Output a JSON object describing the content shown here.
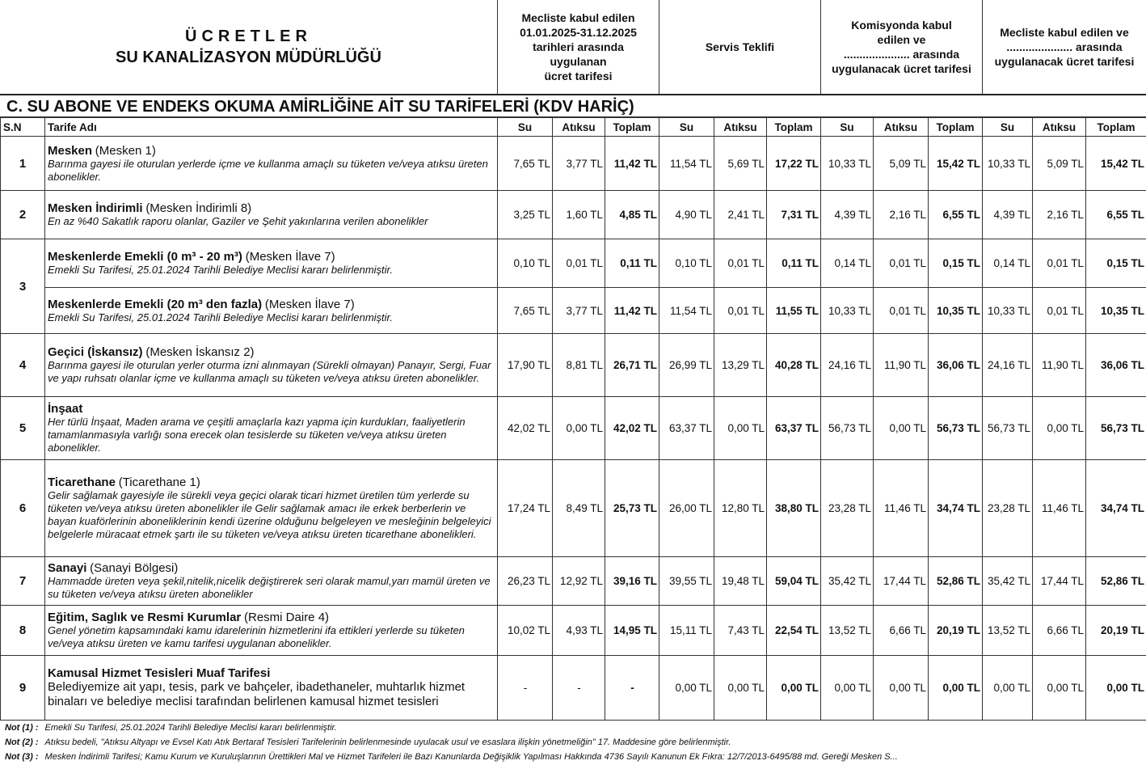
{
  "header": {
    "title": [
      "ÜCRETLER",
      "SU KANALİZASYON MÜDÜRLÜĞÜ"
    ],
    "groups": [
      [
        "Mecliste kabul edilen",
        "01.01.2025-31.12.2025",
        "tarihleri arasında",
        "uygulanan",
        "ücret tarifesi"
      ],
      [
        "Servis Teklifi"
      ],
      [
        "Komisyonda kabul",
        "edilen ve",
        "..................... arasında",
        "uygulanacak ücret tarifesi"
      ],
      [
        "Mecliste kabul edilen ve",
        "..................... arasında",
        "uygulanacak ücret tarifesi"
      ]
    ]
  },
  "section_title": "C. SU ABONE VE ENDEKS OKUMA AMİRLİĞİNE AİT SU TARİFELERİ (KDV HARİÇ)",
  "table": {
    "columns": [
      "S.N",
      "Tarife Adı",
      "Su",
      "Atıksu",
      "Toplam",
      "Su",
      "Atıksu",
      "Toplam",
      "Su",
      "Atıksu",
      "Toplam",
      "Su",
      "Atıksu",
      "Toplam"
    ],
    "rows": [
      {
        "sn": "1",
        "entries": [
          {
            "name": "Mesken",
            "note": "(Mesken 1)",
            "desc": "Barınma gayesi ile oturulan yerlerde içme ve kullanma amaçlı su tüketen ve/veya atıksu üreten abonelikler.",
            "values": [
              "7,65 TL",
              "3,77 TL",
              "11,42 TL",
              "11,54 TL",
              "5,69 TL",
              "17,22 TL",
              "10,33 TL",
              "5,09 TL",
              "15,42 TL",
              "10,33 TL",
              "5,09 TL",
              "15,42 TL"
            ]
          }
        ]
      },
      {
        "sn": "2",
        "entries": [
          {
            "name": "Mesken İndirimli",
            "note": "(Mesken İndirimli 8)",
            "desc": "En az %40 Sakatlık raporu olanlar, Gaziler ve Şehit yakınlarına verilen abonelikler",
            "values": [
              "3,25 TL",
              "1,60 TL",
              "4,85 TL",
              "4,90 TL",
              "2,41 TL",
              "7,31 TL",
              "4,39 TL",
              "2,16 TL",
              "6,55 TL",
              "4,39 TL",
              "2,16 TL",
              "6,55 TL"
            ]
          }
        ]
      },
      {
        "sn": "3",
        "entries": [
          {
            "name": "Meskenlerde Emekli (0 m³ - 20 m³)",
            "note": "(Mesken İlave 7)",
            "desc": "Emekli Su Tarifesi, 25.01.2024 Tarihli Belediye Meclisi kararı belirlenmiştir.",
            "values": [
              "0,10 TL",
              "0,01 TL",
              "0,11 TL",
              "0,10 TL",
              "0,01 TL",
              "0,11 TL",
              "0,14 TL",
              "0,01 TL",
              "0,15 TL",
              "0,14 TL",
              "0,01 TL",
              "0,15 TL"
            ]
          },
          {
            "name": "Meskenlerde Emekli (20 m³ den fazla)",
            "note": "(Mesken İlave 7)",
            "desc": "Emekli Su Tarifesi, 25.01.2024 Tarihli Belediye Meclisi kararı belirlenmiştir.",
            "values": [
              "7,65 TL",
              "3,77 TL",
              "11,42 TL",
              "11,54 TL",
              "0,01 TL",
              "11,55 TL",
              "10,33 TL",
              "0,01 TL",
              "10,35 TL",
              "10,33 TL",
              "0,01 TL",
              "10,35 TL"
            ]
          }
        ]
      },
      {
        "sn": "4",
        "entries": [
          {
            "name": "Geçici (İskansız)",
            "note": "(Mesken İskansız 2)",
            "desc": "Barınma gayesi ile oturulan yerler oturma izni alınmayan (Sürekli olmayan) Panayır, Sergi, Fuar ve yapı ruhsatı olanlar içme ve kullanma amaçlı su tüketen ve/veya atıksu üreten abonelikler.",
            "values": [
              "17,90 TL",
              "8,81 TL",
              "26,71 TL",
              "26,99 TL",
              "13,29 TL",
              "40,28 TL",
              "24,16 TL",
              "11,90 TL",
              "36,06 TL",
              "24,16 TL",
              "11,90 TL",
              "36,06 TL"
            ]
          }
        ]
      },
      {
        "sn": "5",
        "entries": [
          {
            "name": "İnşaat",
            "desc": "Her türlü İnşaat, Maden arama ve çeşitli amaçlarla kazı yapma için kurdukları, faaliyetlerin tamamlanmasıyla varlığı sona erecek olan tesislerde su tüketen ve/veya atıksu üreten abonelikler.",
            "values": [
              "42,02 TL",
              "0,00 TL",
              "42,02 TL",
              "63,37 TL",
              "0,00 TL",
              "63,37 TL",
              "56,73 TL",
              "0,00 TL",
              "56,73 TL",
              "56,73 TL",
              "0,00 TL",
              "56,73 TL"
            ]
          }
        ]
      },
      {
        "sn": "6",
        "entries": [
          {
            "name": "Ticarethane",
            "note": "(Ticarethane 1)",
            "desc": "Gelir sağlamak gayesiyle ile sürekli veya geçici olarak ticari hizmet üretilen tüm yerlerde su tüketen ve/veya atıksu üreten abonelikler ile Gelir sağlamak amacı ile erkek berberlerin ve bayan kuaförlerinin aboneliklerinin kendi üzerine olduğunu belgeleyen ve mesleğinin belgeleyici belgelerle müracaat etmek şartı ile su tüketen ve/veya atıksu üreten ticarethane abonelikleri.",
            "values": [
              "17,24 TL",
              "8,49 TL",
              "25,73 TL",
              "26,00 TL",
              "12,80 TL",
              "38,80 TL",
              "23,28 TL",
              "11,46 TL",
              "34,74 TL",
              "23,28 TL",
              "11,46 TL",
              "34,74 TL"
            ]
          }
        ]
      },
      {
        "sn": "7",
        "entries": [
          {
            "name": "Sanayi",
            "note": "(Sanayi Bölgesi)",
            "desc": "Hammadde üreten veya şekil,nitelik,nicelik değiştirerek seri olarak mamul,yarı mamül üreten ve su tüketen ve/veya atıksu üreten abonelikler",
            "values": [
              "26,23 TL",
              "12,92 TL",
              "39,16 TL",
              "39,55 TL",
              "19,48 TL",
              "59,04 TL",
              "35,42 TL",
              "17,44 TL",
              "52,86 TL",
              "35,42 TL",
              "17,44 TL",
              "52,86 TL"
            ]
          }
        ]
      },
      {
        "sn": "8",
        "entries": [
          {
            "name": "Eğitim, Saglık ve Resmi Kurumlar",
            "note": "(Resmi Daire 4)",
            "desc": "Genel yönetim kapsamındaki kamu idarelerinin hizmetlerini ifa ettikleri yerlerde su tüketen ve/veya atıksu üreten ve kamu tarifesi uygulanan abonelikler.",
            "values": [
              "10,02 TL",
              "4,93 TL",
              "14,95 TL",
              "15,11 TL",
              "7,43 TL",
              "22,54 TL",
              "13,52 TL",
              "6,66 TL",
              "20,19 TL",
              "13,52 TL",
              "6,66 TL",
              "20,19 TL"
            ]
          }
        ]
      },
      {
        "sn": "9",
        "entries": [
          {
            "name": "Kamusal Hizmet Tesisleri Muaf Tarifesi",
            "desc_plain": "Belediyemize ait yapı, tesis, park ve bahçeler, ibadethaneler, muhtarlık hizmet binaları ve belediye meclisi tarafından belirlenen kamusal hizmet tesisleri",
            "values": [
              "-",
              "-",
              "-",
              "0,00 TL",
              "0,00 TL",
              "0,00 TL",
              "0,00 TL",
              "0,00 TL",
              "0,00 TL",
              "0,00 TL",
              "0,00 TL",
              "0,00 TL"
            ]
          }
        ]
      }
    ]
  },
  "notes": [
    {
      "label": "Not (1) :",
      "text": "Emekli Su Tarifesi, 25.01.2024 Tarihli Belediye Meclisi kararı belirlenmiştir."
    },
    {
      "label": "Not (2) :",
      "text": "Atıksu bedeli, \"Atıksu Altyapı ve Evsel Katı Atık Bertaraf Tesisleri Tarifelerinin belirlenmesinde uyulacak usul ve esaslara ilişkin yönetmeliğin\" 17. Maddesine göre belirlenmiştir."
    },
    {
      "label": "Not (3) :",
      "text": "Mesken İndirimli Tarifesi; Kamu Kurum ve Kuruluşlarının Ürettikleri Mal ve Hizmet Tarifeleri ile Bazı Kanunlarda Değişiklik Yapılması Hakkında 4736 Sayılı Kanunun Ek Fıkra: 12/7/2013-6495/88 md. Gereği Mesken S..."
    }
  ]
}
